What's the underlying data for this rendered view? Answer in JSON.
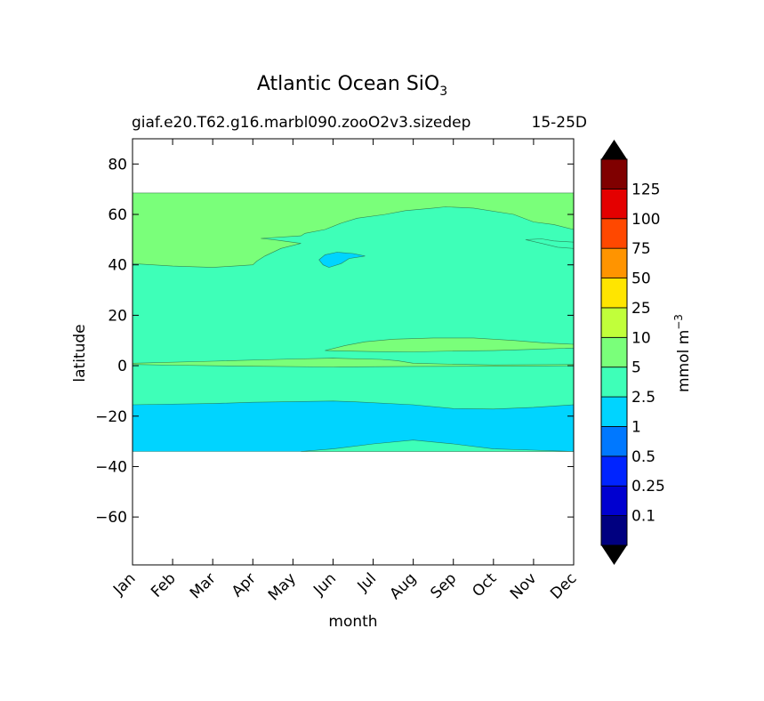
{
  "chart_data": {
    "type": "filled-contour",
    "title_main": "Atlantic Ocean SiO",
    "title_sub": "3",
    "subtitle_left": "giaf.e20.T62.g16.marbl090.zooO2v3.sizedep",
    "subtitle_right": "15-25D",
    "xlabel": "month",
    "ylabel": "latitude",
    "x_ticks": [
      "Jan",
      "Feb",
      "Mar",
      "Apr",
      "May",
      "Jun",
      "Jul",
      "Aug",
      "Sep",
      "Oct",
      "Nov",
      "Dec"
    ],
    "xlim": [
      0,
      11
    ],
    "y_ticks": [
      80,
      60,
      40,
      20,
      0,
      -20,
      -40,
      -60
    ],
    "y_tick_labels": [
      "80",
      "60",
      "40",
      "20",
      "0",
      "−20",
      "−40",
      "−60"
    ],
    "ylim": [
      -79,
      90
    ],
    "data_lat_range": [
      -34,
      68.5
    ],
    "colorbar": {
      "label": "mmol m",
      "label_sup": "−3",
      "levels": [
        "0.1",
        "0.25",
        "0.5",
        "1",
        "2.5",
        "5",
        "10",
        "25",
        "50",
        "75",
        "100",
        "125"
      ],
      "colors": [
        "#000080",
        "#0000d0",
        "#0024ff",
        "#0078ff",
        "#00d4ff",
        "#3effb8",
        "#7aff7a",
        "#c1ff3a",
        "#ffe500",
        "#ff9400",
        "#ff4800",
        "#e40000",
        "#800000"
      ],
      "extend": "both",
      "under_color": "#000000",
      "over_color": "#000000"
    },
    "regions": [
      {
        "name": "south-band",
        "level": "1-2.5",
        "color": "#00d4ff",
        "lower": [
          [
            0,
            -34
          ],
          [
            11,
            -34
          ]
        ],
        "upper": [
          [
            0,
            -15.5
          ],
          [
            2,
            -15
          ],
          [
            3,
            -14.5
          ],
          [
            5,
            -14
          ],
          [
            5.5,
            -14.3
          ],
          [
            7,
            -15.5
          ],
          [
            8,
            -17
          ],
          [
            9,
            -17.2
          ],
          [
            10,
            -16.5
          ],
          [
            11,
            -15.5
          ]
        ]
      },
      {
        "name": "south-bulge",
        "level": "2.5-5",
        "color": "#3effb8",
        "lower": [
          [
            4.2,
            -34
          ],
          [
            11,
            -34
          ]
        ],
        "upper": [
          [
            4.2,
            -34
          ],
          [
            5,
            -33
          ],
          [
            6,
            -31
          ],
          [
            7,
            -29.5
          ],
          [
            8,
            -31
          ],
          [
            9,
            -33
          ],
          [
            10,
            -33.5
          ],
          [
            11,
            -34
          ]
        ]
      },
      {
        "name": "north-cap",
        "level": "5-10",
        "color": "#7aff7a",
        "lower": [
          [
            0,
            40.5
          ],
          [
            1,
            39.5
          ],
          [
            2,
            39
          ],
          [
            3,
            40
          ],
          [
            3.1,
            41.5
          ],
          [
            3.3,
            43.5
          ],
          [
            3.7,
            46.5
          ],
          [
            4.2,
            48.5
          ],
          [
            3.6,
            49.8
          ],
          [
            3.2,
            50.5
          ],
          [
            4.2,
            51.5
          ],
          [
            4.3,
            52.5
          ],
          [
            4.8,
            54
          ],
          [
            5.2,
            56.5
          ],
          [
            5.6,
            58.5
          ],
          [
            6.3,
            60
          ],
          [
            6.8,
            61.5
          ],
          [
            7.5,
            62.5
          ],
          [
            7.8,
            63
          ],
          [
            8.5,
            62.5
          ],
          [
            9.5,
            60
          ],
          [
            10,
            57
          ],
          [
            10.5,
            56
          ],
          [
            11,
            54
          ],
          [
            11,
            68.5
          ],
          [
            0,
            68.5
          ]
        ]
      },
      {
        "name": "equatorial-band",
        "level": "5-10",
        "color": "#7aff7a",
        "path": [
          [
            0,
            1
          ],
          [
            2,
            1.8
          ],
          [
            3.6,
            2.5
          ],
          [
            5,
            3
          ],
          [
            6.2,
            2.5
          ],
          [
            6.6,
            2
          ],
          [
            7,
            1
          ],
          [
            8,
            0.6
          ],
          [
            9,
            0.3
          ],
          [
            11,
            0.5
          ],
          [
            11,
            0
          ],
          [
            9,
            -0.2
          ],
          [
            7,
            -0.3
          ],
          [
            5,
            -0.5
          ],
          [
            3,
            -0.2
          ],
          [
            1,
            0.2
          ],
          [
            0,
            0.5
          ]
        ]
      },
      {
        "name": "tropical-band",
        "level": "5-10",
        "color": "#7aff7a",
        "path": [
          [
            4.8,
            6
          ],
          [
            5.3,
            8
          ],
          [
            5.8,
            9.5
          ],
          [
            6.5,
            10.5
          ],
          [
            7.5,
            11
          ],
          [
            8.5,
            11
          ],
          [
            9.5,
            10
          ],
          [
            10.3,
            9
          ],
          [
            11,
            8.5
          ],
          [
            11,
            7
          ],
          [
            10,
            6.5
          ],
          [
            9,
            6
          ],
          [
            8,
            5.8
          ],
          [
            7,
            5.5
          ],
          [
            6,
            5.6
          ]
        ]
      },
      {
        "name": "east-lobe",
        "level": "2.5-5",
        "color": "#3effb8",
        "path": [
          [
            9.8,
            50
          ],
          [
            10.2,
            48.5
          ],
          [
            10.6,
            47
          ],
          [
            11,
            46.5
          ],
          [
            11,
            49
          ],
          [
            10.5,
            49.5
          ],
          [
            10.2,
            50.3
          ]
        ]
      },
      {
        "name": "mid-patch",
        "level": "1-2.5",
        "color": "#00d4ff",
        "path": [
          [
            4.65,
            42
          ],
          [
            4.8,
            44
          ],
          [
            5.1,
            45
          ],
          [
            5.5,
            44.5
          ],
          [
            5.8,
            43.5
          ],
          [
            5.4,
            42.5
          ],
          [
            5.2,
            40.5
          ],
          [
            4.9,
            39
          ],
          [
            4.75,
            40
          ]
        ]
      }
    ]
  }
}
